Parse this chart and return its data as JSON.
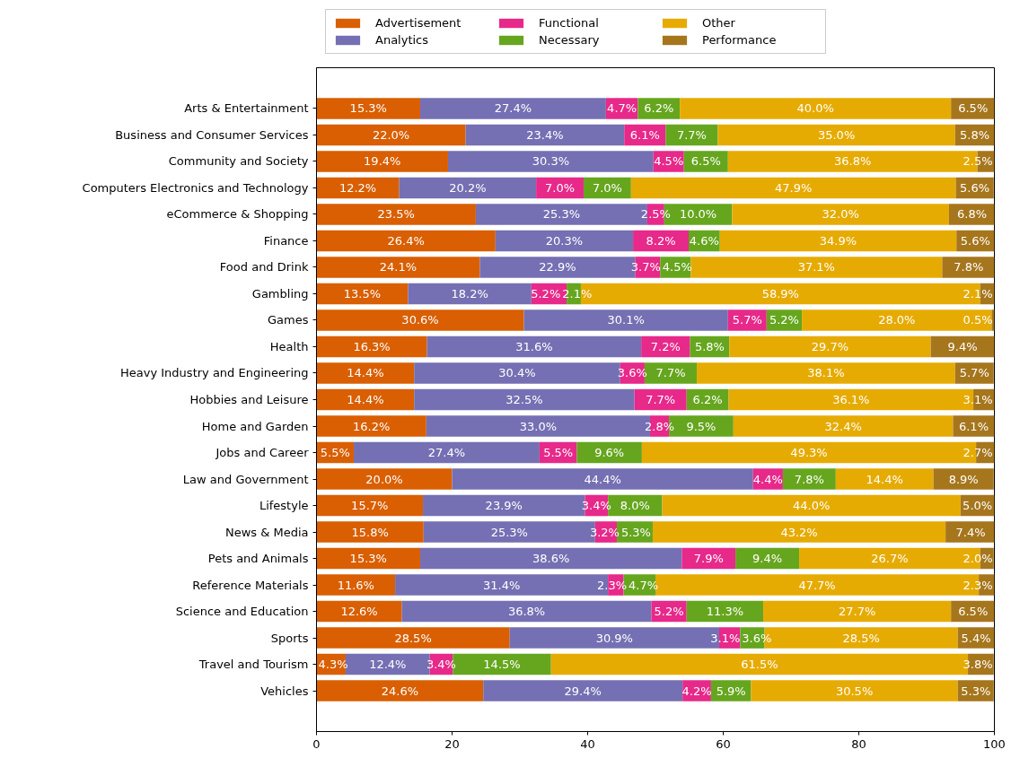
{
  "chart_data": {
    "type": "bar",
    "orientation": "horizontal",
    "stacked": true,
    "legend": "top",
    "grid": false,
    "categories": [
      "Arts & Entertainment",
      "Business and Consumer Services",
      "Community and Society",
      "Computers Electronics and Technology",
      "eCommerce & Shopping",
      "Finance",
      "Food and Drink",
      "Gambling",
      "Games",
      "Health",
      "Heavy Industry and Engineering",
      "Hobbies and Leisure",
      "Home and Garden",
      "Jobs and Career",
      "Law and Government",
      "Lifestyle",
      "News & Media",
      "Pets and Animals",
      "Reference Materials",
      "Science and Education",
      "Sports",
      "Travel and Tourism",
      "Vehicles"
    ],
    "xlim": [
      0,
      100
    ],
    "xticks": [
      0,
      20,
      40,
      60,
      80,
      100
    ],
    "series": [
      {
        "name": "Advertisement",
        "color": "#d95f02",
        "values": [
          15.3,
          22.0,
          19.4,
          12.2,
          23.5,
          26.4,
          24.1,
          13.5,
          30.6,
          16.3,
          14.4,
          14.4,
          16.2,
          5.5,
          20.0,
          15.7,
          15.8,
          15.3,
          11.6,
          12.6,
          28.5,
          4.3,
          24.6
        ],
        "value_labels": [
          "15.3%",
          "22.0%",
          "19.4%",
          "12.2%",
          "23.5%",
          "26.4%",
          "24.1%",
          "13.5%",
          "30.6%",
          "16.3%",
          "14.4%",
          "14.4%",
          "16.2%",
          "5.5%",
          "20.0%",
          "15.7%",
          "15.8%",
          "15.3%",
          "11.6%",
          "12.6%",
          "28.5%",
          "4.3%",
          "24.6%"
        ]
      },
      {
        "name": "Analytics",
        "color": "#7570b3",
        "values": [
          27.4,
          23.4,
          30.3,
          20.2,
          25.3,
          20.3,
          22.9,
          18.2,
          30.1,
          31.6,
          30.4,
          32.5,
          33.0,
          27.4,
          44.4,
          23.9,
          25.3,
          38.6,
          31.4,
          36.8,
          30.9,
          12.4,
          29.4
        ],
        "value_labels": [
          "27.4%",
          "23.4%",
          "30.3%",
          "20.2%",
          "25.3%",
          "20.3%",
          "22.9%",
          "18.2%",
          "30.1%",
          "31.6%",
          "30.4%",
          "32.5%",
          "33.0%",
          "27.4%",
          "44.4%",
          "23.9%",
          "25.3%",
          "38.6%",
          "31.4%",
          "36.8%",
          "30.9%",
          "12.4%",
          "29.4%"
        ]
      },
      {
        "name": "Functional",
        "color": "#e7298a",
        "values": [
          4.7,
          6.1,
          4.5,
          7.0,
          2.5,
          8.2,
          3.7,
          5.2,
          5.7,
          7.2,
          3.6,
          7.7,
          2.8,
          5.5,
          4.4,
          3.4,
          3.2,
          7.9,
          2.3,
          5.2,
          3.1,
          3.4,
          4.2
        ],
        "value_labels": [
          "4.7%",
          "6.1%",
          "4.5%",
          "7.0%",
          "2.5%",
          "8.2%",
          "3.7%",
          "5.2%",
          "5.7%",
          "7.2%",
          "3.6%",
          "7.7%",
          "2.8%",
          "5.5%",
          "4.4%",
          "3.4%",
          "3.2%",
          "7.9%",
          "2.3%",
          "5.2%",
          "3.1%",
          "3.4%",
          "4.2%"
        ]
      },
      {
        "name": "Necessary",
        "color": "#66a61e",
        "values": [
          6.2,
          7.7,
          6.5,
          7.0,
          10.0,
          4.6,
          4.5,
          2.1,
          5.2,
          5.8,
          7.7,
          6.2,
          9.5,
          9.6,
          7.8,
          8.0,
          5.3,
          9.4,
          4.7,
          11.3,
          3.6,
          14.5,
          5.9
        ],
        "value_labels": [
          "6.2%",
          "7.7%",
          "6.5%",
          "7.0%",
          "10.0%",
          "4.6%",
          "4.5%",
          "2.1%",
          "5.2%",
          "5.8%",
          "7.7%",
          "6.2%",
          "9.5%",
          "9.6%",
          "7.8%",
          "8.0%",
          "5.3%",
          "9.4%",
          "4.7%",
          "11.3%",
          "3.6%",
          "14.5%",
          "5.9%"
        ]
      },
      {
        "name": "Other",
        "color": "#e6ab02",
        "values": [
          40.0,
          35.0,
          36.8,
          47.9,
          32.0,
          34.9,
          37.1,
          58.9,
          28.0,
          29.7,
          38.1,
          36.1,
          32.4,
          49.3,
          14.4,
          44.0,
          43.2,
          26.7,
          47.7,
          27.7,
          28.5,
          61.5,
          30.5
        ],
        "value_labels": [
          "40.0%",
          "35.0%",
          "36.8%",
          "47.9%",
          "32.0%",
          "34.9%",
          "37.1%",
          "58.9%",
          "28.0%",
          "29.7%",
          "38.1%",
          "36.1%",
          "32.4%",
          "49.3%",
          "14.4%",
          "44.0%",
          "43.2%",
          "26.7%",
          "47.7%",
          "27.7%",
          "28.5%",
          "61.5%",
          "30.5%"
        ]
      },
      {
        "name": "Performance",
        "color": "#a6761d",
        "values": [
          6.5,
          5.8,
          2.5,
          5.6,
          6.8,
          5.6,
          7.8,
          2.1,
          0.5,
          9.4,
          5.7,
          3.1,
          6.1,
          2.7,
          8.9,
          5.0,
          7.4,
          2.0,
          2.3,
          6.5,
          5.4,
          3.8,
          5.3
        ],
        "value_labels": [
          "6.5%",
          "5.8%",
          "2.5%",
          "5.6%",
          "6.8%",
          "5.6%",
          "7.8%",
          "2.1%",
          "0.5%",
          "9.4%",
          "5.7%",
          "3.1%",
          "6.1%",
          "2.7%",
          "8.9%",
          "5.0%",
          "7.4%",
          "2.0%",
          "2.3%",
          "6.5%",
          "5.4%",
          "3.8%",
          "5.3%"
        ]
      }
    ]
  }
}
